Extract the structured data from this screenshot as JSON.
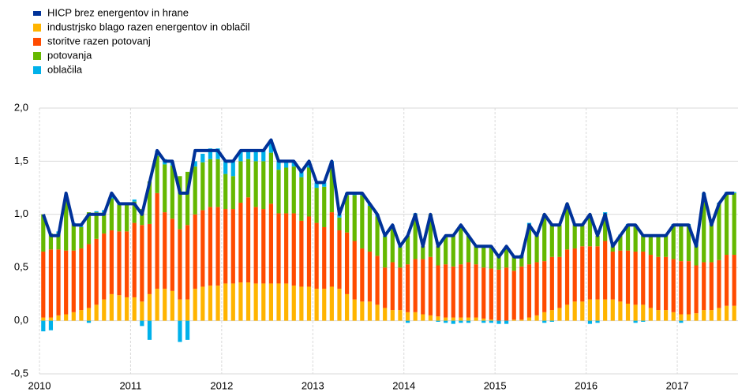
{
  "chart_data": {
    "type": "stacked_bar_line",
    "categories": [
      "2010",
      null,
      null,
      null,
      null,
      null,
      null,
      null,
      null,
      null,
      null,
      null,
      "2011",
      null,
      null,
      null,
      null,
      null,
      null,
      null,
      null,
      null,
      null,
      null,
      "2012",
      null,
      null,
      null,
      null,
      null,
      null,
      null,
      null,
      null,
      null,
      null,
      "2013",
      null,
      null,
      null,
      null,
      null,
      null,
      null,
      null,
      null,
      null,
      null,
      "2014",
      null,
      null,
      null,
      null,
      null,
      null,
      null,
      null,
      null,
      null,
      null,
      "2015",
      null,
      null,
      null,
      null,
      null,
      null,
      null,
      null,
      null,
      null,
      null,
      "2016",
      null,
      null,
      null,
      null,
      null,
      null,
      null,
      null,
      null,
      null,
      null,
      "2017",
      null,
      null,
      null,
      null,
      null,
      null,
      null
    ],
    "ylim": [
      -0.5,
      2.0
    ],
    "yticks": [
      {
        "value": -0.5,
        "label": "-0,5"
      },
      {
        "value": 0,
        "label": "0,0"
      },
      {
        "value": 0.5,
        "label": "0,5"
      },
      {
        "value": 1,
        "label": "1,0"
      },
      {
        "value": 1.5,
        "label": "1,5"
      },
      {
        "value": 2,
        "label": "2,0"
      }
    ],
    "grid": true,
    "legend": "top-left",
    "series": [
      {
        "name": "HICP brez energentov in hrane",
        "color": "#003299",
        "kind": "line",
        "values": [
          1.0,
          0.8,
          0.8,
          1.2,
          0.9,
          0.9,
          1.0,
          1.0,
          1.0,
          1.2,
          1.1,
          1.1,
          1.1,
          1.0,
          1.3,
          1.6,
          1.5,
          1.5,
          1.2,
          1.2,
          1.6,
          1.6,
          1.6,
          1.6,
          1.5,
          1.5,
          1.6,
          1.6,
          1.6,
          1.6,
          1.7,
          1.5,
          1.5,
          1.5,
          1.4,
          1.5,
          1.3,
          1.3,
          1.5,
          1.0,
          1.2,
          1.2,
          1.2,
          1.1,
          1.0,
          0.8,
          0.9,
          0.7,
          0.8,
          1.0,
          0.7,
          1.0,
          0.7,
          0.8,
          0.8,
          0.9,
          0.8,
          0.7,
          0.7,
          0.7,
          0.6,
          0.7,
          0.6,
          0.6,
          0.9,
          0.8,
          1.0,
          0.9,
          0.9,
          1.1,
          0.9,
          0.9,
          1.0,
          0.8,
          1.0,
          0.7,
          0.8,
          0.9,
          0.9,
          0.8,
          0.8,
          0.8,
          0.8,
          0.9,
          0.9,
          0.9,
          0.7,
          1.2,
          0.9,
          1.1,
          1.2,
          1.2
        ]
      },
      {
        "name": "industrjsko blago razen energentov in oblačil",
        "color": "#ffb400",
        "kind": "bar",
        "values": [
          0.03,
          0.03,
          0.05,
          0.06,
          0.08,
          0.1,
          0.12,
          0.15,
          0.2,
          0.25,
          0.24,
          0.22,
          0.22,
          0.18,
          0.25,
          0.3,
          0.3,
          0.28,
          0.2,
          0.2,
          0.3,
          0.32,
          0.33,
          0.33,
          0.35,
          0.35,
          0.36,
          0.36,
          0.35,
          0.35,
          0.35,
          0.35,
          0.35,
          0.33,
          0.32,
          0.32,
          0.3,
          0.3,
          0.32,
          0.3,
          0.25,
          0.2,
          0.18,
          0.18,
          0.15,
          0.12,
          0.1,
          0.1,
          0.08,
          0.08,
          0.06,
          0.05,
          0.04,
          0.03,
          0.03,
          0.03,
          0.03,
          0.03,
          0.02,
          0.01,
          0.0,
          0.0,
          0.01,
          0.01,
          0.03,
          0.05,
          0.08,
          0.1,
          0.12,
          0.15,
          0.18,
          0.18,
          0.2,
          0.2,
          0.2,
          0.2,
          0.18,
          0.16,
          0.15,
          0.15,
          0.12,
          0.1,
          0.1,
          0.08,
          0.06,
          0.06,
          0.07,
          0.1,
          0.1,
          0.12,
          0.14,
          0.14
        ]
      },
      {
        "name": "storitve razen potovanj",
        "color": "#ff4b00",
        "kind": "bar",
        "values": [
          0.62,
          0.64,
          0.62,
          0.6,
          0.58,
          0.58,
          0.6,
          0.62,
          0.62,
          0.6,
          0.6,
          0.62,
          0.7,
          0.72,
          0.66,
          0.9,
          0.72,
          0.68,
          0.66,
          0.7,
          0.7,
          0.72,
          0.74,
          0.74,
          0.7,
          0.7,
          0.75,
          0.8,
          0.72,
          0.7,
          0.75,
          0.66,
          0.66,
          0.68,
          0.62,
          0.66,
          0.62,
          0.58,
          0.7,
          0.55,
          0.58,
          0.55,
          0.5,
          0.47,
          0.46,
          0.38,
          0.45,
          0.4,
          0.45,
          0.5,
          0.52,
          0.55,
          0.48,
          0.5,
          0.48,
          0.5,
          0.52,
          0.5,
          0.48,
          0.48,
          0.48,
          0.5,
          0.46,
          0.5,
          0.5,
          0.5,
          0.48,
          0.5,
          0.48,
          0.52,
          0.5,
          0.52,
          0.5,
          0.5,
          0.55,
          0.45,
          0.48,
          0.5,
          0.5,
          0.5,
          0.5,
          0.5,
          0.5,
          0.5,
          0.5,
          0.5,
          0.45,
          0.45,
          0.45,
          0.45,
          0.48,
          0.48
        ]
      },
      {
        "name": "potovanja",
        "color": "#65b800",
        "kind": "bar",
        "values": [
          0.35,
          0.15,
          0.15,
          0.5,
          0.25,
          0.2,
          0.3,
          0.25,
          0.2,
          0.3,
          0.25,
          0.25,
          0.2,
          0.15,
          0.4,
          0.35,
          0.45,
          0.5,
          0.5,
          0.5,
          0.45,
          0.45,
          0.45,
          0.45,
          0.33,
          0.31,
          0.39,
          0.36,
          0.43,
          0.45,
          0.48,
          0.41,
          0.43,
          0.44,
          0.41,
          0.46,
          0.33,
          0.38,
          0.44,
          0.12,
          0.35,
          0.43,
          0.5,
          0.43,
          0.37,
          0.29,
          0.34,
          0.19,
          0.27,
          0.42,
          0.12,
          0.4,
          0.18,
          0.27,
          0.29,
          0.37,
          0.25,
          0.17,
          0.2,
          0.21,
          0.12,
          0.2,
          0.13,
          0.09,
          0.37,
          0.25,
          0.44,
          0.3,
          0.3,
          0.43,
          0.22,
          0.2,
          0.3,
          0.1,
          0.25,
          0.05,
          0.14,
          0.24,
          0.25,
          0.15,
          0.18,
          0.2,
          0.2,
          0.32,
          0.34,
          0.34,
          0.18,
          0.63,
          0.35,
          0.53,
          0.58,
          0.58
        ]
      },
      {
        "name": "oblačila",
        "color": "#00b1ea",
        "kind": "bar",
        "values": [
          -0.1,
          -0.09,
          0.02,
          0.02,
          0.01,
          0.01,
          -0.02,
          0.01,
          0.02,
          0.03,
          0.02,
          0.02,
          0.02,
          -0.05,
          -0.18,
          0.05,
          0.05,
          0.03,
          -0.2,
          -0.18,
          0.05,
          0.08,
          0.1,
          0.1,
          0.12,
          0.14,
          0.1,
          0.08,
          0.1,
          0.1,
          0.12,
          0.08,
          0.06,
          0.05,
          0.05,
          0.06,
          0.05,
          0.04,
          0.04,
          0.03,
          0.02,
          0.02,
          0.02,
          0.02,
          0.02,
          0.01,
          0.01,
          0.01,
          -0.02,
          0.01,
          0.0,
          0.0,
          -0.01,
          -0.02,
          -0.03,
          -0.02,
          -0.02,
          0.0,
          -0.02,
          -0.02,
          -0.03,
          -0.03,
          0.01,
          0.02,
          0.02,
          0.01,
          -0.02,
          -0.01,
          0.0,
          0.0,
          0.01,
          0.0,
          -0.03,
          -0.02,
          0.02,
          0.01,
          0.01,
          0.01,
          -0.02,
          -0.01,
          0.0,
          0.01,
          0.01,
          0.01,
          -0.02,
          0.01,
          0.02,
          0.02,
          0.01,
          0.01,
          0.01,
          0.01
        ]
      }
    ]
  }
}
